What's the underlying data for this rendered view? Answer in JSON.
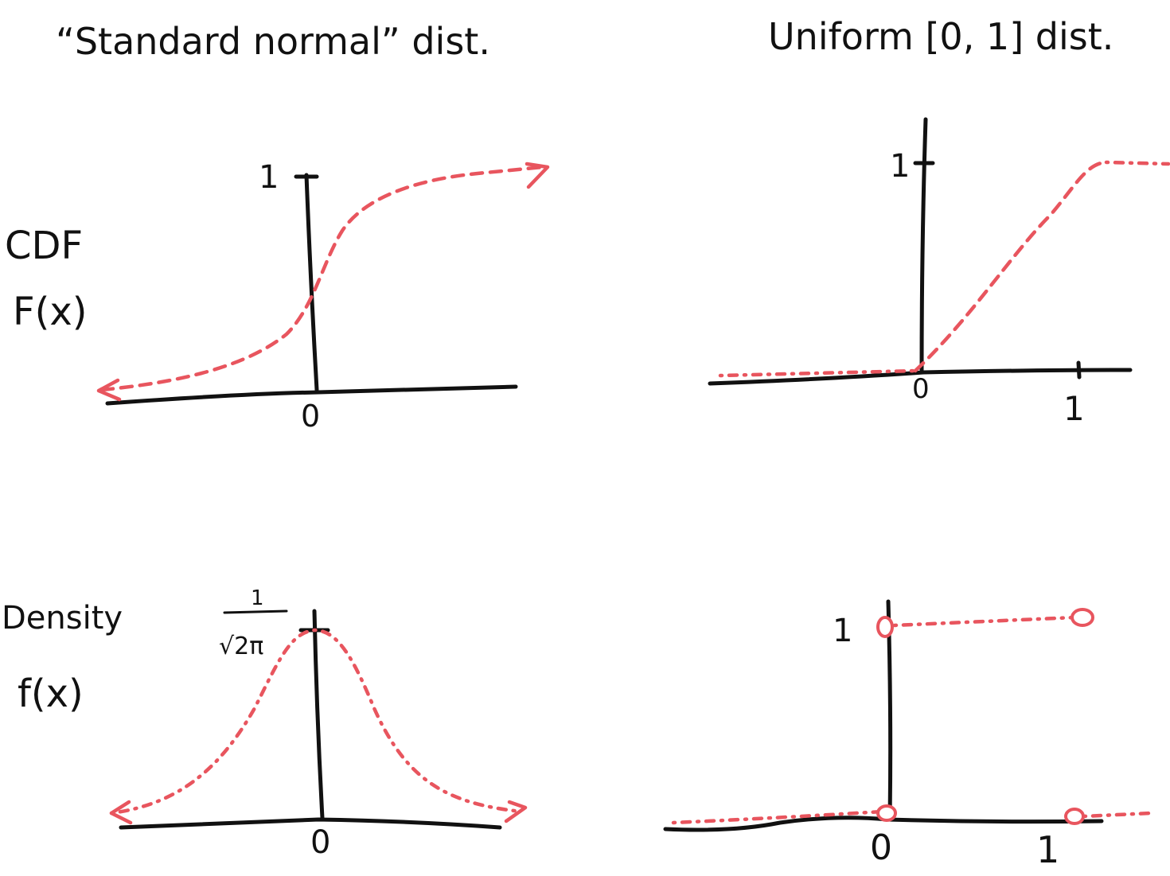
{
  "titles": {
    "left": "“Standard normal” dist.",
    "right": "Uniform [0, 1] dist."
  },
  "row_labels": {
    "cdf": "CDF",
    "cdf_fn": "F(x)",
    "density": "Density",
    "density_fn": "f(x)"
  },
  "normal_cdf": {
    "y_tick": "1",
    "x_tick": "0"
  },
  "uniform_cdf": {
    "y_tick": "1",
    "x_tick_0": "0",
    "x_tick_1": "1"
  },
  "normal_pdf": {
    "peak_num": "1",
    "peak_den": "√2π",
    "x_tick": "0"
  },
  "uniform_pdf": {
    "y_tick": "1",
    "x_tick_0": "0",
    "x_tick_1": "1"
  },
  "colors": {
    "ink": "#111111",
    "curve": "#e8555e"
  }
}
